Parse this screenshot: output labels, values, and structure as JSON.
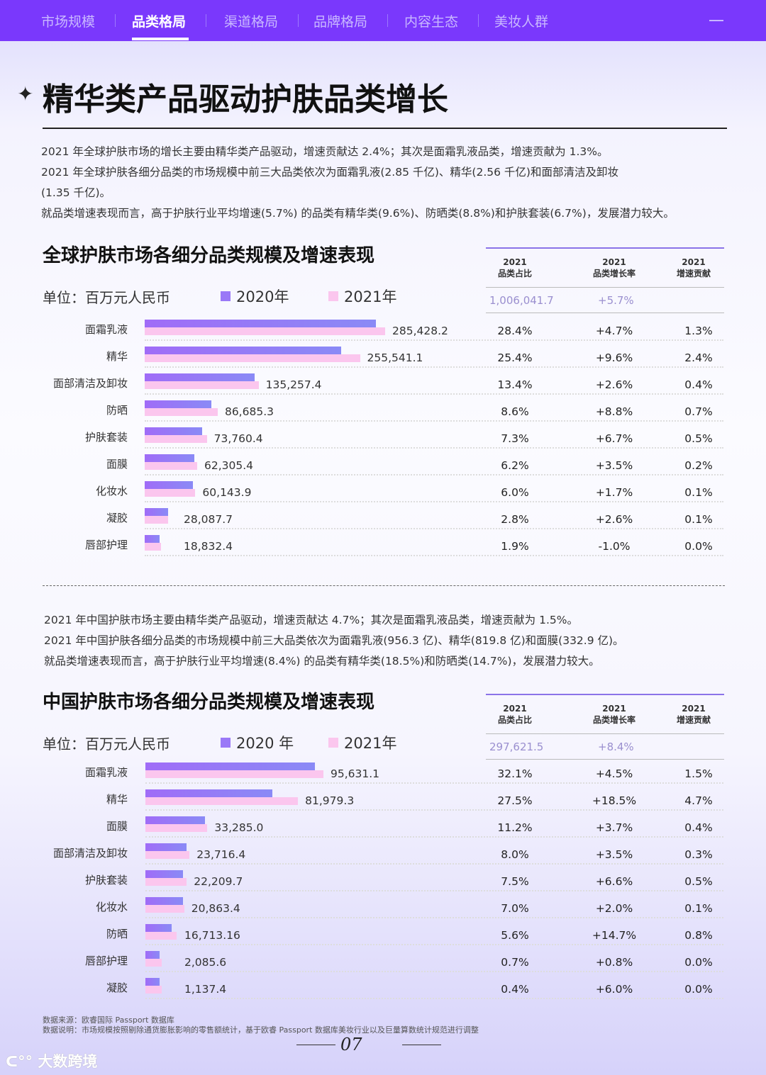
{
  "nav": {
    "items": [
      "市场规模",
      "品类格局",
      "渠道格局",
      "品牌格局",
      "内容生态",
      "美妆人群"
    ],
    "active": 1
  },
  "page_title": "精华类产品驱动护肤品类增长",
  "global_paragraphs": [
    "2021 年全球护肤市场的增长主要由精华类产品驱动，增速贡献达 2.4%；其次是面霜乳液品类，增速贡献为 1.3%。",
    "2021 年全球护肤各细分品类的市场规模中前三大品类依次为面霜乳液(2.85 千亿)、精华(2.56 千亿)和面部清洁及卸妆",
    "(1.35 千亿)。",
    "就品类增速表现而言，高于护肤行业平均增速(5.7%) 的品类有精华类(9.6%)、防晒类(8.8%)和护肤套装(6.7%)，发展潜力较大。"
  ],
  "china_paragraphs": [
    "2021 年中国护肤市场主要由精华类产品驱动，增速贡献达 4.7%；其次是面霜乳液品类，增速贡献为 1.5%。",
    "2021 年中国护肤各细分品类的市场规模中前三大品类依次为面霜乳液(956.3 亿)、精华(819.8 亿)和面膜(332.9 亿)。",
    "就品类增速表现而言，高于护肤行业平均增速(8.4%) 的品类有精华类(18.5%)和防晒类(14.7%)，发展潜力较大。"
  ],
  "colors": {
    "nav": "#7a38fc",
    "series_2020": "#9a78f7",
    "series_2021": "#fbc6ee"
  },
  "chart_data": [
    {
      "type": "bar",
      "orientation": "horizontal",
      "title": "全球护肤市场各细分品类规模及增速表现",
      "unit": "单位：百万元人民币",
      "legend": [
        "2020年",
        "2021年"
      ],
      "categories": [
        "面霜乳液",
        "精华",
        "面部清洁及卸妆",
        "防晒",
        "护肤套装",
        "面膜",
        "化妆水",
        "凝胶",
        "唇部护理"
      ],
      "series": [
        {
          "name": "2020年",
          "values": [
            274500,
            233200,
            130500,
            79100,
            68200,
            58900,
            57200,
            27800,
            17700
          ]
        },
        {
          "name": "2021年",
          "values": [
            285428.2,
            255541.1,
            135257.4,
            86685.3,
            73760.4,
            62305.4,
            60143.9,
            28087.7,
            18832.4
          ],
          "labels": [
            "285,428.2",
            "255,541.1",
            "135,257.4",
            "86,685.3",
            "73,760.4",
            "62,305.4",
            "60,143.9",
            "28,087.7",
            "18,832.4"
          ]
        }
      ],
      "table": {
        "headers": [
          [
            "2021",
            "品类占比"
          ],
          [
            "2021",
            "品类增长率"
          ],
          [
            "2021",
            "增速贡献"
          ]
        ],
        "total": [
          "1,006,041.7",
          "+5.7%",
          ""
        ],
        "rows": [
          [
            "28.4%",
            "+4.7%",
            "1.3%"
          ],
          [
            "25.4%",
            "+9.6%",
            "2.4%"
          ],
          [
            "13.4%",
            "+2.6%",
            "0.4%"
          ],
          [
            "8.6%",
            "+8.8%",
            "0.7%"
          ],
          [
            "7.3%",
            "+6.7%",
            "0.5%"
          ],
          [
            "6.2%",
            "+3.5%",
            "0.2%"
          ],
          [
            "6.0%",
            "+1.7%",
            "0.1%"
          ],
          [
            "2.8%",
            "+2.6%",
            "0.1%"
          ],
          [
            "1.9%",
            "-1.0%",
            "0.0%"
          ]
        ]
      }
    },
    {
      "type": "bar",
      "orientation": "horizontal",
      "title": "中国护肤市场各细分品类规模及增速表现",
      "unit": "单位：百万元人民币",
      "legend": [
        "2020 年",
        "2021年"
      ],
      "categories": [
        "面霜乳液",
        "精华",
        "面膜",
        "面部清洁及卸妆",
        "护肤套装",
        "化妆水",
        "防晒",
        "唇部护理",
        "凝胶"
      ],
      "series": [
        {
          "name": "2020 年",
          "values": [
            91000,
            68200,
            32000,
            22100,
            20200,
            20200,
            14100,
            2000,
            1100
          ]
        },
        {
          "name": "2021年",
          "values": [
            95631.1,
            81979.3,
            33285.0,
            23716.4,
            22209.7,
            20863.4,
            16713.16,
            2085.6,
            1137.4
          ],
          "labels": [
            "95,631.1",
            "81,979.3",
            "33,285.0",
            "23,716.4",
            "22,209.7",
            "20,863.4",
            "16,713.16",
            "2,085.6",
            "1,137.4"
          ]
        }
      ],
      "table": {
        "headers": [
          [
            "2021",
            "品类占比"
          ],
          [
            "2021",
            "品类增长率"
          ],
          [
            "2021",
            "增速贡献"
          ]
        ],
        "total": [
          "297,621.5",
          "+8.4%",
          ""
        ],
        "rows": [
          [
            "32.1%",
            "+4.5%",
            "1.5%"
          ],
          [
            "27.5%",
            "+18.5%",
            "4.7%"
          ],
          [
            "11.2%",
            "+3.7%",
            "0.4%"
          ],
          [
            "8.0%",
            "+3.5%",
            "0.3%"
          ],
          [
            "7.5%",
            "+6.6%",
            "0.5%"
          ],
          [
            "7.0%",
            "+2.0%",
            "0.1%"
          ],
          [
            "5.6%",
            "+14.7%",
            "0.8%"
          ],
          [
            "0.7%",
            "+0.8%",
            "0.0%"
          ],
          [
            "0.4%",
            "+6.0%",
            "0.0%"
          ]
        ]
      }
    }
  ],
  "footer": {
    "source": "数据来源：欧睿国际 Passport 数据库",
    "note": "数据说明：市场规模按照剔除通货膨胀影响的零售额统计，基于欧睿 Passport 数据库美妆行业以及巨量算数统计规范进行调整",
    "page": "07",
    "logo": "大数跨境"
  }
}
